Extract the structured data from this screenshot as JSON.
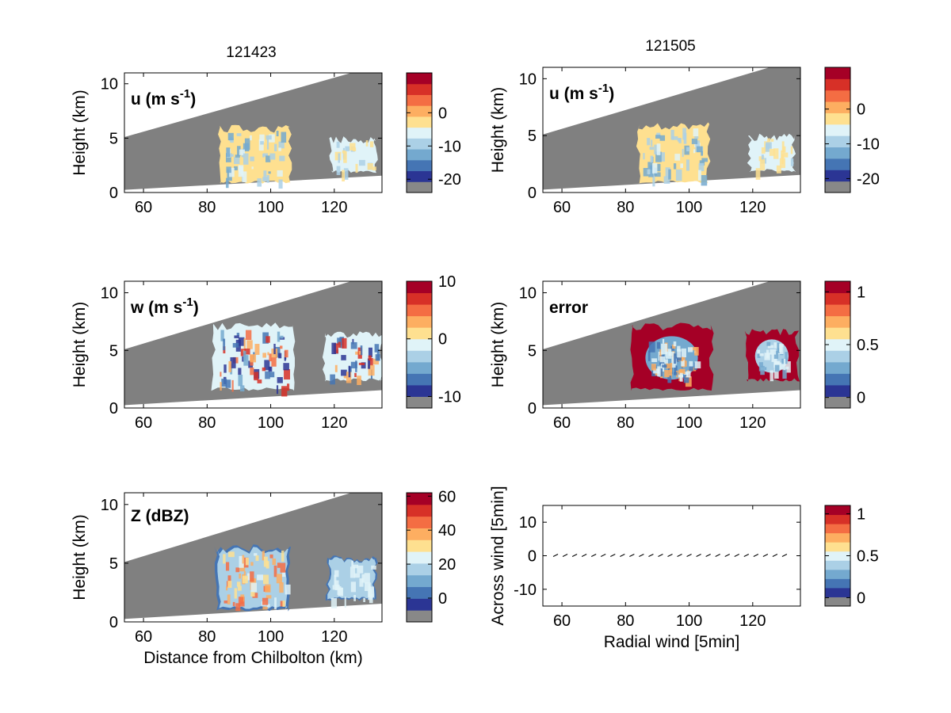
{
  "figure": {
    "left_title": "121423",
    "right_title": "121505"
  },
  "colormap": [
    "#888888",
    "#2b3594",
    "#4575b4",
    "#74a9cf",
    "#abd0e6",
    "#e0f3f8",
    "#fee090",
    "#fdae61",
    "#f46d43",
    "#d73027",
    "#a50026"
  ],
  "chart_data": [
    {
      "id": "u-121423",
      "type": "heatmap",
      "title": "121423",
      "panel_label": "u (m s-1)",
      "xlabel": "",
      "ylabel": "Height (km)",
      "xlim": [
        54,
        135
      ],
      "ylim": [
        0,
        11
      ],
      "xticks": [
        60,
        80,
        100,
        120
      ],
      "yticks": [
        0,
        5,
        10
      ],
      "colorbar": {
        "range": [
          -24,
          12
        ],
        "ticks": [
          0,
          -10,
          -20
        ]
      },
      "echoes": [
        {
          "x": [
            84,
            106
          ],
          "y": [
            0.8,
            6.0
          ],
          "fill": "#fee090",
          "mix": [
            "#e0f3f8",
            "#abd0e6",
            "#74a9cf"
          ]
        },
        {
          "x": [
            119,
            133
          ],
          "y": [
            1.8,
            5.0
          ],
          "fill": "#e0f3f8",
          "mix": [
            "#fee090",
            "#abd0e6"
          ]
        }
      ]
    },
    {
      "id": "u-121505",
      "type": "heatmap",
      "title": "121505",
      "panel_label": "u (m s-1)",
      "xlabel": "",
      "ylabel": "Height (km)",
      "xlim": [
        54,
        135
      ],
      "ylim": [
        0,
        11
      ],
      "xticks": [
        60,
        80,
        100,
        120
      ],
      "yticks": [
        0,
        5,
        10
      ],
      "colorbar": {
        "range": [
          -24,
          12
        ],
        "ticks": [
          0,
          -10,
          -20
        ]
      },
      "echoes": [
        {
          "x": [
            84,
            106
          ],
          "y": [
            0.8,
            6.0
          ],
          "fill": "#fee090",
          "mix": [
            "#e0f3f8",
            "#abd0e6",
            "#74a9cf"
          ]
        },
        {
          "x": [
            119,
            133
          ],
          "y": [
            1.8,
            5.0
          ],
          "fill": "#e0f3f8",
          "mix": [
            "#fee090",
            "#abd0e6"
          ]
        }
      ]
    },
    {
      "id": "w-121423",
      "type": "heatmap",
      "panel_label": "w (m s-1)",
      "xlabel": "",
      "ylabel": "Height (km)",
      "xlim": [
        54,
        135
      ],
      "ylim": [
        0,
        11
      ],
      "xticks": [
        60,
        80,
        100,
        120
      ],
      "yticks": [
        0,
        5,
        10
      ],
      "colorbar": {
        "range": [
          -12,
          10
        ],
        "ticks": [
          10,
          0,
          -10
        ]
      },
      "echoes": [
        {
          "x": [
            82,
            107
          ],
          "y": [
            1.5,
            7.2
          ],
          "fill": "#e0f3f8",
          "mix": [
            "#fdae61",
            "#f46d43",
            "#74a9cf",
            "#4575b4",
            "#d73027",
            "#2b3594"
          ]
        },
        {
          "x": [
            117,
            135
          ],
          "y": [
            2.3,
            6.5
          ],
          "fill": "#e0f3f8",
          "mix": [
            "#fdae61",
            "#d73027",
            "#4575b4",
            "#2b3594"
          ]
        }
      ]
    },
    {
      "id": "error-121505",
      "type": "heatmap",
      "panel_label": "error",
      "xlabel": "",
      "ylabel": "Height (km)",
      "xlim": [
        54,
        135
      ],
      "ylim": [
        0,
        11
      ],
      "xticks": [
        60,
        80,
        100,
        120
      ],
      "yticks": [
        0,
        5,
        10
      ],
      "colorbar": {
        "range": [
          -0.1,
          1.1
        ],
        "ticks": [
          1,
          0.5,
          0
        ]
      },
      "echoes": [
        {
          "x": [
            82,
            107
          ],
          "y": [
            1.5,
            7.2
          ],
          "fill": "#a50026",
          "core": "#74a9cf",
          "mix": [
            "#e0f3f8",
            "#4575b4",
            "#fdae61"
          ]
        },
        {
          "x": [
            118,
            134
          ],
          "y": [
            2.3,
            6.7
          ],
          "fill": "#a50026",
          "core": "#abd0e6",
          "mix": [
            "#e0f3f8",
            "#74a9cf"
          ]
        }
      ]
    },
    {
      "id": "z-121423",
      "type": "heatmap",
      "panel_label": "Z (dBZ)",
      "xlabel": "Distance from Chilbolton (km)",
      "ylabel": "Height (km)",
      "xlim": [
        54,
        135
      ],
      "ylim": [
        0,
        11
      ],
      "xticks": [
        60,
        80,
        100,
        120
      ],
      "yticks": [
        0,
        5,
        10
      ],
      "colorbar": {
        "range": [
          -14,
          62
        ],
        "ticks": [
          60,
          40,
          20,
          0
        ]
      },
      "echoes": [
        {
          "x": [
            83,
            106
          ],
          "y": [
            0.9,
            6.4
          ],
          "fill": "#abd0e6",
          "edge": "#4575b4",
          "mix": [
            "#e0f3f8",
            "#fee090",
            "#fdae61",
            "#f46d43"
          ]
        },
        {
          "x": [
            118,
            133
          ],
          "y": [
            1.8,
            5.5
          ],
          "fill": "#abd0e6",
          "edge": "#4575b4",
          "mix": [
            "#e0f3f8"
          ]
        }
      ]
    },
    {
      "id": "wind-121505",
      "type": "scatter",
      "panel_label": "",
      "xlabel": "Radial wind [5min]",
      "ylabel": "Across wind [5min]",
      "xlim": [
        54,
        135
      ],
      "ylim": [
        -15,
        15
      ],
      "xticks": [
        60,
        80,
        100,
        120
      ],
      "yticks": [
        10,
        0,
        -10
      ],
      "colorbar": {
        "range": [
          -0.1,
          1.1
        ],
        "ticks": [
          1,
          0.5,
          0
        ]
      },
      "points": {
        "x_start": 58,
        "x_end": 132,
        "step": 3,
        "y": 0
      }
    }
  ]
}
